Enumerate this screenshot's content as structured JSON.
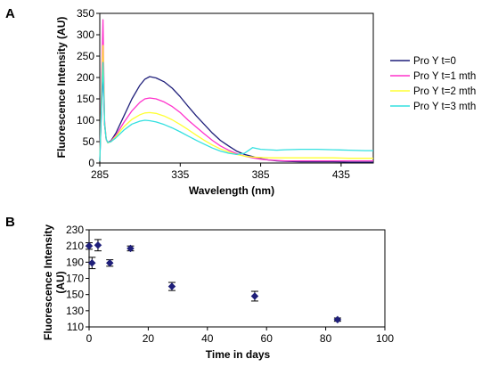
{
  "chart_data": [
    {
      "panel_label": "A",
      "type": "line",
      "xlabel": "Wavelength (nm)",
      "ylabel": "Fluorescence Intensity (AU)",
      "xlim": [
        285,
        455
      ],
      "ylim": [
        0,
        350
      ],
      "x_ticks": [
        285,
        335,
        385,
        435
      ],
      "y_ticks": [
        0,
        50,
        100,
        150,
        200,
        250,
        300,
        350
      ],
      "grid": false,
      "legend_position": "right",
      "series": [
        {
          "name": "Pro Y t=0",
          "color": "#1f1f7a",
          "x": [
            285,
            286,
            287,
            288,
            289,
            290,
            292,
            295,
            300,
            305,
            310,
            313,
            316,
            320,
            325,
            330,
            335,
            340,
            345,
            350,
            355,
            360,
            365,
            370,
            375,
            380,
            385,
            390,
            395,
            400,
            410,
            420,
            430,
            440,
            450,
            455
          ],
          "y": [
            5,
            120,
            225,
            90,
            55,
            48,
            52,
            70,
            110,
            150,
            182,
            196,
            202,
            199,
            190,
            175,
            155,
            132,
            110,
            90,
            70,
            53,
            40,
            28,
            20,
            15,
            10,
            7,
            5,
            4,
            3,
            3,
            3,
            2,
            2,
            2
          ]
        },
        {
          "name": "Pro Y t=1 mth",
          "color": "#ff33cc",
          "x": [
            285,
            286,
            287,
            288,
            289,
            290,
            292,
            295,
            300,
            305,
            310,
            313,
            316,
            320,
            325,
            330,
            335,
            340,
            345,
            350,
            355,
            360,
            365,
            370,
            375,
            380,
            385,
            390,
            395,
            400,
            410,
            420,
            430,
            440,
            450,
            455
          ],
          "y": [
            5,
            180,
            335,
            100,
            55,
            47,
            51,
            65,
            95,
            122,
            142,
            150,
            152,
            150,
            143,
            132,
            118,
            100,
            84,
            68,
            53,
            40,
            30,
            22,
            16,
            12,
            9,
            7,
            6,
            5,
            5,
            5,
            5,
            5,
            5,
            5
          ]
        },
        {
          "name": "Pro Y t=2 mth",
          "color": "#ffff33",
          "x": [
            285,
            286,
            287,
            288,
            289,
            290,
            292,
            295,
            300,
            305,
            310,
            313,
            316,
            320,
            325,
            330,
            335,
            340,
            345,
            350,
            355,
            360,
            365,
            370,
            375,
            380,
            385,
            390,
            395,
            400,
            410,
            420,
            430,
            440,
            450,
            455
          ],
          "y": [
            5,
            150,
            275,
            95,
            56,
            47,
            50,
            62,
            85,
            102,
            113,
            117,
            118,
            116,
            110,
            101,
            90,
            78,
            65,
            53,
            42,
            33,
            26,
            20,
            16,
            14,
            13,
            12,
            12,
            12,
            12,
            12,
            12,
            11,
            11,
            11
          ]
        },
        {
          "name": "Pro Y t=3 mth",
          "color": "#33e0e0",
          "x": [
            285,
            286,
            287,
            288,
            289,
            290,
            292,
            295,
            300,
            305,
            310,
            313,
            316,
            320,
            325,
            330,
            335,
            340,
            345,
            350,
            355,
            360,
            365,
            370,
            375,
            380,
            385,
            390,
            395,
            400,
            410,
            420,
            430,
            440,
            450,
            455
          ],
          "y": [
            5,
            130,
            235,
            92,
            56,
            48,
            50,
            59,
            77,
            91,
            98,
            100,
            99,
            96,
            90,
            82,
            73,
            63,
            53,
            44,
            35,
            28,
            23,
            20,
            23,
            36,
            32,
            31,
            30,
            31,
            32,
            32,
            31,
            30,
            29,
            29
          ]
        }
      ]
    },
    {
      "panel_label": "B",
      "type": "scatter",
      "xlabel": "Time in days",
      "ylabel": "Fluorescence Intensity (AU)",
      "xlim": [
        0,
        100
      ],
      "ylim": [
        110,
        230
      ],
      "x_ticks": [
        0,
        20,
        40,
        60,
        80,
        100
      ],
      "y_ticks": [
        110,
        130,
        150,
        170,
        190,
        210,
        230
      ],
      "grid": false,
      "color": "#1f1f7a",
      "points": [
        {
          "x": 0,
          "y": 210,
          "err": 4
        },
        {
          "x": 1,
          "y": 189,
          "err": 7
        },
        {
          "x": 3,
          "y": 211,
          "err": 7
        },
        {
          "x": 7,
          "y": 189,
          "err": 4
        },
        {
          "x": 14,
          "y": 207,
          "err": 3
        },
        {
          "x": 28,
          "y": 160,
          "err": 5
        },
        {
          "x": 56,
          "y": 148,
          "err": 6
        },
        {
          "x": 84,
          "y": 119,
          "err": 2
        }
      ]
    }
  ]
}
